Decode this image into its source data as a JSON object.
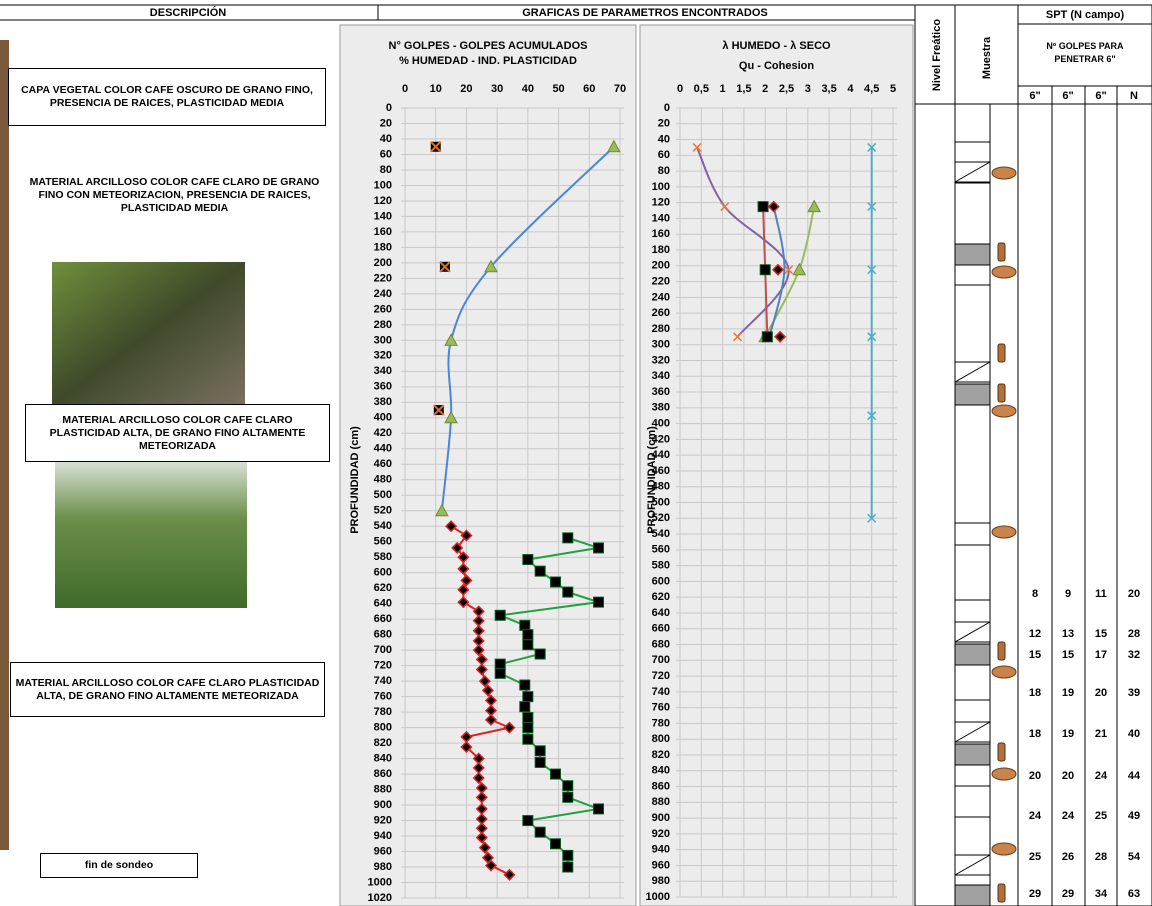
{
  "header": {
    "description": "DESCRIPCIÓN",
    "graphs": "GRAFICAS DE PARAMETROS ENCONTRADOS"
  },
  "layers": [
    "CAPA VEGETAL COLOR CAFE OSCURO DE GRANO FINO, PRESENCIA DE RAICES, PLASTICIDAD MEDIA",
    "MATERIAL ARCILLOSO COLOR CAFE CLARO DE GRANO FINO CON METEORIZACION, PRESENCIA DE RAICES, PLASTICIDAD MEDIA",
    "MATERIAL ARCILLOSO COLOR CAFE CLARO PLASTICIDAD ALTA, DE GRANO FINO ALTAMENTE METEORIZADA",
    "MATERIAL ARCILLOSO COLOR CAFE CLARO PLASTICIDAD ALTA, DE GRANO FINO ALTAMENTE METEORIZADA"
  ],
  "end_note": "fin de sondeo",
  "water_table": "Nivel Freático",
  "sample": "Muestra",
  "spt": {
    "title": "SPT (N  campo)",
    "subtitle": "Nº GOLPES PARA PENETRAR 6\"",
    "columns": [
      "6\"",
      "6\"",
      "6\"",
      "N"
    ],
    "rows": [
      [
        8,
        9,
        11,
        20
      ],
      [
        12,
        13,
        15,
        28
      ],
      [
        15,
        15,
        17,
        32
      ],
      [
        18,
        19,
        20,
        39
      ],
      [
        18,
        19,
        21,
        40
      ],
      [
        20,
        20,
        24,
        44
      ],
      [
        24,
        24,
        25,
        49
      ],
      [
        25,
        26,
        28,
        54
      ],
      [
        29,
        29,
        34,
        63
      ]
    ]
  },
  "chart_data": [
    {
      "type": "scatter",
      "title": "N° GOLPES  -  GOLPES ACUMULADOS",
      "subtitle": "% HUMEDAD    -   IND. PLASTICIDAD",
      "ylabel": "PROFUNDIDAD (cm)",
      "xlim": [
        0,
        70
      ],
      "xticks": [
        0,
        10,
        20,
        30,
        40,
        50,
        60,
        70
      ],
      "ylim": [
        0,
        1020
      ],
      "y_inverted": true,
      "grid": true,
      "yticks": [
        0,
        20,
        40,
        60,
        80,
        100,
        120,
        140,
        160,
        180,
        200,
        220,
        240,
        260,
        280,
        300,
        320,
        340,
        360,
        380,
        400,
        420,
        440,
        460,
        480,
        500,
        520,
        540,
        560,
        580,
        600,
        620,
        640,
        660,
        680,
        700,
        720,
        740,
        760,
        780,
        800,
        820,
        840,
        860,
        880,
        900,
        920,
        940,
        960,
        980,
        1000,
        1020
      ],
      "series": [
        {
          "color": "#e07020",
          "marker": "x-square",
          "line": false,
          "x": [
            10,
            13,
            11
          ],
          "values": [
            50,
            205,
            390
          ]
        },
        {
          "color": "#4a86d8",
          "marker_color": "#9bbb59",
          "marker": "triangle",
          "line": true,
          "smooth": true,
          "x": [
            68,
            28,
            15,
            15,
            12
          ],
          "values": [
            50,
            205,
            300,
            400,
            520
          ]
        },
        {
          "color": "#e02020",
          "marker": "diamond",
          "line": true,
          "smooth": false,
          "x": [
            15,
            20,
            17,
            19,
            19,
            20,
            19,
            19,
            24,
            24,
            24,
            24,
            24,
            25,
            25,
            26,
            27,
            28,
            28,
            28,
            34,
            20,
            20,
            24,
            24,
            24,
            25,
            25,
            25,
            25,
            25,
            25,
            26,
            27,
            28,
            34
          ],
          "values": [
            540,
            552,
            568,
            580,
            595,
            610,
            622,
            638,
            650,
            662,
            675,
            688,
            700,
            712,
            725,
            740,
            752,
            765,
            778,
            790,
            800,
            812,
            825,
            840,
            852,
            865,
            878,
            890,
            905,
            918,
            930,
            942,
            955,
            968,
            978,
            990
          ]
        },
        {
          "color": "#20a040",
          "marker": "square",
          "line": true,
          "smooth": false,
          "x": [
            53,
            63,
            40,
            44,
            49,
            53,
            63,
            31,
            39,
            40,
            40,
            44,
            31,
            31,
            39,
            40,
            39,
            40,
            40,
            40,
            44,
            44,
            49,
            53,
            53,
            63,
            40,
            44,
            49,
            53,
            53
          ],
          "values": [
            555,
            568,
            583,
            598,
            612,
            625,
            638,
            655,
            668,
            680,
            693,
            705,
            718,
            730,
            745,
            760,
            773,
            787,
            800,
            815,
            830,
            845,
            860,
            875,
            890,
            905,
            920,
            935,
            950,
            965,
            980
          ]
        }
      ]
    },
    {
      "type": "scatter",
      "title": "λ HUMEDO  - λ SECO",
      "subtitle": "Qu    -    Cohesion",
      "ylabel": "PROFUNDIDAD (cm)",
      "xlim": [
        0,
        5
      ],
      "xticks": [
        0,
        {
          "value": 0.5,
          "label": "0,5"
        },
        1,
        {
          "value": 1.5,
          "label": "1,5"
        },
        2,
        {
          "value": 2.5,
          "label": "2,5"
        },
        3,
        {
          "value": 3.5,
          "label": "3,5"
        },
        4,
        {
          "value": 4.5,
          "label": "4,5"
        },
        5
      ],
      "ylim": [
        0,
        1000
      ],
      "y_inverted": true,
      "grid": true,
      "yticks": [
        0,
        20,
        40,
        60,
        80,
        100,
        120,
        140,
        160,
        180,
        200,
        220,
        240,
        260,
        280,
        300,
        320,
        340,
        360,
        380,
        400,
        420,
        440,
        460,
        480,
        500,
        520,
        540,
        560,
        580,
        600,
        620,
        640,
        660,
        680,
        700,
        720,
        740,
        760,
        780,
        800,
        820,
        840,
        860,
        880,
        900,
        920,
        940,
        960,
        980,
        1000
      ],
      "series": [
        {
          "color": "#8064a2",
          "marker_color": "#f07830",
          "marker": "x",
          "line": true,
          "smooth": true,
          "x": [
            0.4,
            1.05,
            2.55,
            1.35
          ],
          "values": [
            50,
            125,
            205,
            290
          ]
        },
        {
          "color": "#9bbb59",
          "marker": "triangle",
          "line": true,
          "smooth": true,
          "x": [
            3.15,
            2.8,
            2.0
          ],
          "values": [
            125,
            205,
            290
          ]
        },
        {
          "color": "#4f81bd",
          "marker": "none",
          "line": true,
          "smooth": true,
          "x": [
            2.2,
            2.45,
            2.1
          ],
          "values": [
            125,
            205,
            290
          ]
        },
        {
          "color": "#c0504d",
          "marker": "square",
          "line": true,
          "smooth": false,
          "x": [
            1.95,
            2.0,
            2.05
          ],
          "values": [
            125,
            205,
            290
          ]
        },
        {
          "color": "#e02020",
          "marker": "diamond",
          "line": false,
          "x": [
            2.2,
            2.3,
            2.35
          ],
          "values": [
            125,
            205,
            290
          ]
        },
        {
          "color": "#4bacc6",
          "marker_color": "#4bacc6",
          "marker": "x",
          "line": true,
          "smooth": false,
          "x": [
            4.5,
            4.5,
            4.5,
            4.5,
            4.5,
            4.5
          ],
          "values": [
            50,
            125,
            205,
            290,
            390,
            520
          ]
        }
      ]
    }
  ]
}
